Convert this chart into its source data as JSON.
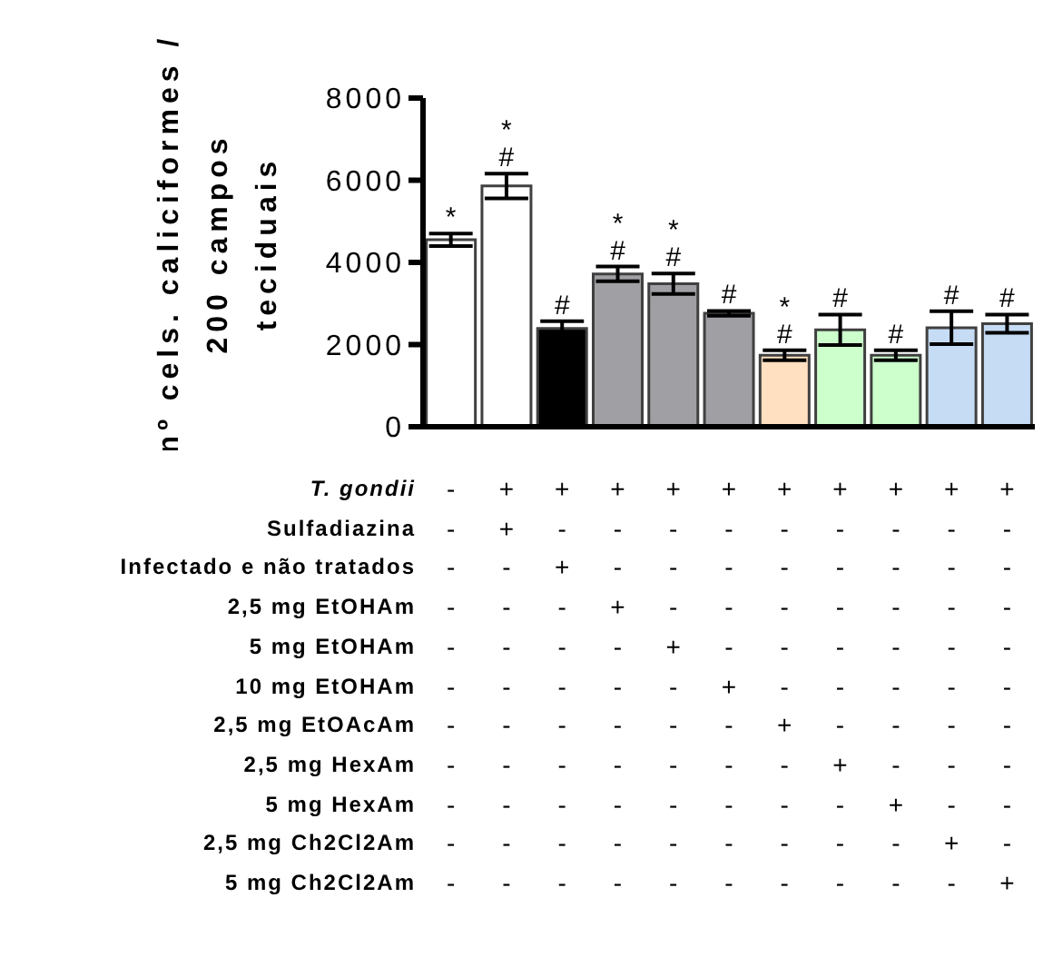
{
  "chart_data": {
    "type": "bar",
    "ylabel": "nº cels. caliciformes /\n200 campos\nteciduais",
    "categories": [
      "-\n-\n-\n-\n-\n-\n-\n-\n-\n-\n-",
      "+\n+\n-\n-\n-\n-\n-\n-\n-\n-\n-",
      "+\n-\n+\n-\n-\n-\n-\n-\n-\n-\n-",
      "+\n-\n-\n+\n-\n-\n-\n-\n-\n-\n-",
      "+\n-\n-\n-\n+\n-\n-\n-\n-\n-\n-",
      "+\n-\n-\n-\n-\n+\n-\n-\n-\n-\n-",
      "+\n-\n-\n-\n-\n-\n+\n-\n-\n-\n-",
      "+\n-\n-\n-\n-\n-\n-\n+\n-\n-\n-",
      "+\n-\n-\n-\n-\n-\n-\n-\n+\n-\n-",
      "+\n-\n-\n-\n-\n-\n-\n-\n-\n+\n-",
      "+\n-\n-\n-\n-\n-\n-\n-\n-\n-\n+"
    ],
    "values": [
      4550,
      5860,
      2390,
      3720,
      3480,
      2760,
      1740,
      2360,
      1740,
      2410,
      2510
    ],
    "errors": [
      150,
      300,
      180,
      180,
      250,
      60,
      120,
      370,
      120,
      400,
      220
    ],
    "colors": [
      "#ffffff",
      "#ffffff",
      "#000000",
      "#a0a0a4",
      "#a0a0a4",
      "#a0a0a4",
      "#ffe0c0",
      "#ccffcc",
      "#ccffcc",
      "#c6dcf5",
      "#c6dcf5"
    ],
    "value_labels": [
      "*",
      "*\n#",
      "#",
      "*\n#",
      "*\n#",
      "#",
      "*\n#",
      "#",
      "#",
      "#",
      "#"
    ],
    "ylim": [
      0,
      8000
    ],
    "yticks": [
      0,
      2000,
      4000,
      6000,
      8000
    ],
    "grid": false,
    "legend": false,
    "annotations": [
      "T. gondii",
      "Sulfadiazina",
      "Infectado e não tratados",
      "2,5 mg EtOHAm",
      "5 mg  EtOHAm",
      "10 mg  EtOHAm",
      "2,5 mg EtOAcAm",
      "2,5 mg  HexAm",
      "5 mg  HexAm",
      "2,5 mg  Ch2Cl2Am",
      "5 mg  Ch2Cl2Am"
    ]
  }
}
